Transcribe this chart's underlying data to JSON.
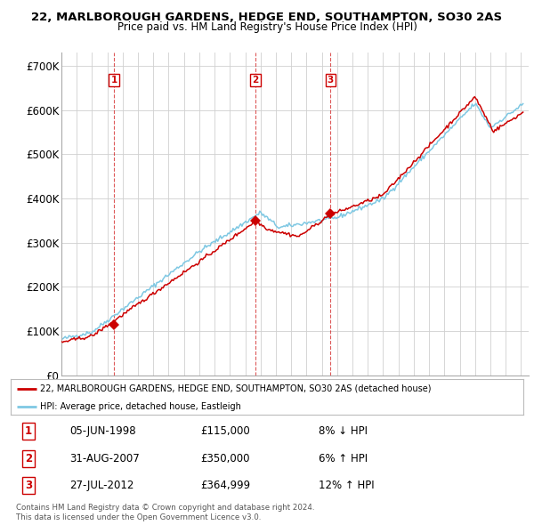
{
  "title": "22, MARLBOROUGH GARDENS, HEDGE END, SOUTHAMPTON, SO30 2AS",
  "subtitle": "Price paid vs. HM Land Registry's House Price Index (HPI)",
  "ylim": [
    0,
    730000
  ],
  "yticks": [
    0,
    100000,
    200000,
    300000,
    400000,
    500000,
    600000,
    700000
  ],
  "ytick_labels": [
    "£0",
    "£100K",
    "£200K",
    "£300K",
    "£400K",
    "£500K",
    "£600K",
    "£700K"
  ],
  "background_color": "#ffffff",
  "grid_color": "#d0d0d0",
  "hpi_color": "#7ec8e3",
  "price_color": "#cc0000",
  "sale_points": [
    {
      "year": 1998.43,
      "price": 115000,
      "label": "1"
    },
    {
      "year": 2007.66,
      "price": 350000,
      "label": "2"
    },
    {
      "year": 2012.57,
      "price": 364999,
      "label": "3"
    }
  ],
  "legend_price_label": "22, MARLBOROUGH GARDENS, HEDGE END, SOUTHAMPTON, SO30 2AS (detached house)",
  "legend_hpi_label": "HPI: Average price, detached house, Eastleigh",
  "table_rows": [
    [
      "1",
      "05-JUN-1998",
      "£115,000",
      "8% ↓ HPI"
    ],
    [
      "2",
      "31-AUG-2007",
      "£350,000",
      "6% ↑ HPI"
    ],
    [
      "3",
      "27-JUL-2012",
      "£364,999",
      "12% ↑ HPI"
    ]
  ],
  "footnote": "Contains HM Land Registry data © Crown copyright and database right 2024.\nThis data is licensed under the Open Government Licence v3.0.",
  "xmin": 1995.0,
  "xmax": 2025.5
}
